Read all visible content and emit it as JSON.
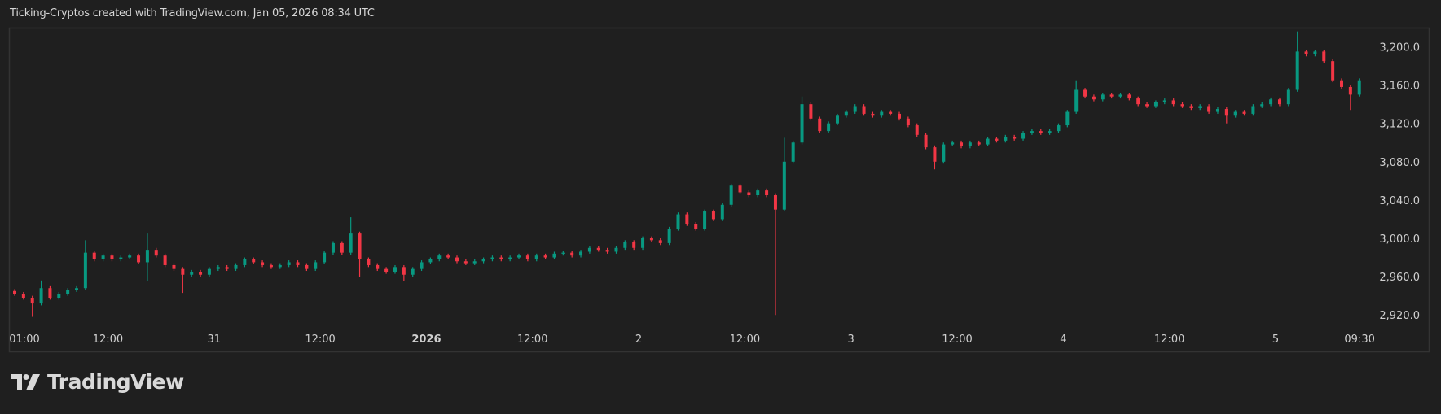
{
  "header": {
    "title": "Ticking-Cryptos created with TradingView.com, Jan 05, 2026 08:34 UTC"
  },
  "branding": {
    "logo_text": "TradingView"
  },
  "colors": {
    "up": "#089981",
    "down": "#f23645",
    "background": "#1f1f1f",
    "frame": "#333333",
    "axis_text": "#cfcfcf"
  },
  "chart_data": {
    "type": "candlestick",
    "title": "",
    "interval": "1h",
    "start": "Dec 30 01:00",
    "y_ticks": [
      2920,
      2960,
      3000,
      3040,
      3080,
      3120,
      3160,
      3200
    ],
    "y_tick_labels": [
      "2,920.0",
      "2,960.0",
      "3,000.0",
      "3,040.0",
      "3,080.0",
      "3,120.0",
      "3,160.0",
      "3,200.0"
    ],
    "ylim": [
      2905,
      3220
    ],
    "x_ticks": [
      {
        "label": "01:00",
        "hour": 0,
        "bold": false
      },
      {
        "label": "12:00",
        "hour": 11,
        "bold": false
      },
      {
        "label": "31",
        "hour": 23,
        "bold": false
      },
      {
        "label": "12:00",
        "hour": 35,
        "bold": false
      },
      {
        "label": "2026",
        "hour": 47,
        "bold": true
      },
      {
        "label": "12:00",
        "hour": 59,
        "bold": false
      },
      {
        "label": "2",
        "hour": 71,
        "bold": false
      },
      {
        "label": "12:00",
        "hour": 83,
        "bold": false
      },
      {
        "label": "3",
        "hour": 95,
        "bold": false
      },
      {
        "label": "12:00",
        "hour": 107,
        "bold": false
      },
      {
        "label": "4",
        "hour": 119,
        "bold": false
      },
      {
        "label": "12:00",
        "hour": 131,
        "bold": false
      },
      {
        "label": "5",
        "hour": 143,
        "bold": false
      },
      {
        "label": "09:30",
        "hour": 152.5,
        "bold": false
      }
    ],
    "open_first": 2945,
    "close": [
      2942,
      2938,
      2932,
      2948,
      2938,
      2942,
      2946,
      2948,
      2985,
      2978,
      2982,
      2978,
      2980,
      2982,
      2975,
      2988,
      2982,
      2972,
      2968,
      2962,
      2965,
      2962,
      2968,
      2970,
      2968,
      2972,
      2978,
      2975,
      2972,
      2970,
      2972,
      2975,
      2972,
      2968,
      2975,
      2985,
      2995,
      2985,
      3005,
      2978,
      2972,
      2968,
      2965,
      2970,
      2962,
      2968,
      2975,
      2978,
      2982,
      2980,
      2976,
      2974,
      2976,
      2978,
      2980,
      2978,
      2980,
      2982,
      2978,
      2982,
      2980,
      2984,
      2985,
      2982,
      2986,
      2990,
      2988,
      2986,
      2990,
      2996,
      2990,
      3000,
      2998,
      2995,
      3010,
      3025,
      3015,
      3010,
      3028,
      3020,
      3035,
      3055,
      3048,
      3045,
      3050,
      3045,
      3030,
      3080,
      3100,
      3140,
      3125,
      3112,
      3120,
      3128,
      3132,
      3138,
      3130,
      3128,
      3132,
      3130,
      3125,
      3118,
      3108,
      3095,
      3080,
      3098,
      3100,
      3096,
      3100,
      3098,
      3104,
      3102,
      3106,
      3104,
      3110,
      3112,
      3110,
      3112,
      3118,
      3132,
      3155,
      3148,
      3145,
      3150,
      3148,
      3150,
      3146,
      3140,
      3138,
      3142,
      3144,
      3140,
      3138,
      3136,
      3138,
      3132,
      3135,
      3128,
      3132,
      3130,
      3138,
      3140,
      3145,
      3140,
      3155,
      3195,
      3192,
      3195,
      3185,
      3165,
      3158,
      3150,
      3165
    ],
    "extremes": [
      {
        "hour": 2,
        "low": 2918
      },
      {
        "hour": 3,
        "high": 2956
      },
      {
        "hour": 8,
        "high": 2998
      },
      {
        "hour": 15,
        "high": 3005,
        "low": 2955
      },
      {
        "hour": 19,
        "low": 2943
      },
      {
        "hour": 38,
        "high": 3022
      },
      {
        "hour": 39,
        "low": 2960
      },
      {
        "hour": 44,
        "low": 2955
      },
      {
        "hour": 86,
        "low": 2920
      },
      {
        "hour": 87,
        "high": 3105
      },
      {
        "hour": 89,
        "high": 3148
      },
      {
        "hour": 104,
        "low": 3072
      },
      {
        "hour": 120,
        "high": 3165
      },
      {
        "hour": 137,
        "low": 3120
      },
      {
        "hour": 145,
        "high": 3216
      },
      {
        "hour": 151,
        "low": 3134
      }
    ]
  }
}
